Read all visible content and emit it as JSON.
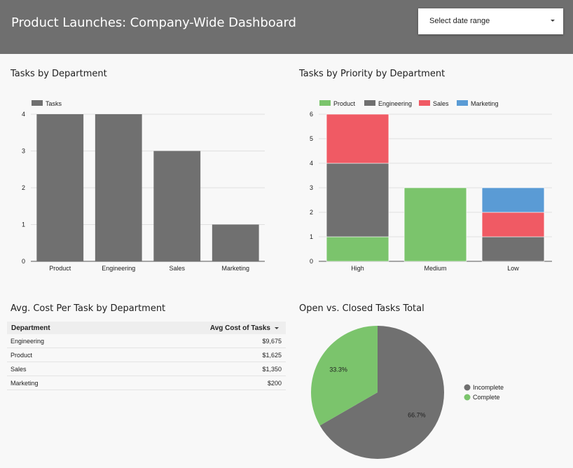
{
  "header": {
    "title": "Product Launches: Company-Wide Dashboard",
    "date_range_label": "Select date range"
  },
  "colors": {
    "header_bg": "#6f6f6f",
    "gray": "#707070",
    "green": "#7bc46c",
    "red": "#f05a64",
    "blue": "#5a9bd5"
  },
  "panels": {
    "tasks_by_department": "Tasks by Department",
    "tasks_by_priority": "Tasks by Priority by Department",
    "avg_cost": "Avg. Cost Per Task by Department",
    "open_closed": "Open vs. Closed Tasks Total"
  },
  "chart_data": [
    {
      "type": "bar",
      "title": "Tasks by Department",
      "categories": [
        "Product",
        "Engineering",
        "Sales",
        "Marketing"
      ],
      "series": [
        {
          "name": "Tasks",
          "values": [
            4,
            4,
            3,
            1
          ],
          "color": "#707070"
        }
      ],
      "ylim": [
        0,
        4
      ],
      "yticks": [
        "0",
        "1",
        "2",
        "3",
        "4"
      ],
      "legend": "top-left",
      "grid": true
    },
    {
      "type": "bar",
      "stacked": true,
      "title": "Tasks by Priority by Department",
      "categories": [
        "High",
        "Medium",
        "Low"
      ],
      "series": [
        {
          "name": "Product",
          "values": [
            1,
            3,
            0
          ],
          "color": "#7bc46c"
        },
        {
          "name": "Engineering",
          "values": [
            3,
            0,
            1
          ],
          "color": "#707070"
        },
        {
          "name": "Sales",
          "values": [
            2,
            0,
            1
          ],
          "color": "#f05a64"
        },
        {
          "name": "Marketing",
          "values": [
            0,
            0,
            1
          ],
          "color": "#5a9bd5"
        }
      ],
      "ylim": [
        0,
        6
      ],
      "yticks": [
        "0",
        "1",
        "2",
        "3",
        "4",
        "5",
        "6"
      ],
      "legend": "top-left",
      "grid": true
    },
    {
      "type": "table",
      "title": "Avg. Cost Per Task by Department",
      "columns": [
        "Department",
        "Avg Cost of Tasks"
      ],
      "rows": [
        [
          "Engineering",
          "$9,675"
        ],
        [
          "Product",
          "$1,625"
        ],
        [
          "Sales",
          "$1,350"
        ],
        [
          "Marketing",
          "$200"
        ]
      ]
    },
    {
      "type": "pie",
      "title": "Open vs. Closed Tasks Total",
      "slices": [
        {
          "name": "Incomplete",
          "value": 66.7,
          "label": "66.7%",
          "color": "#707070"
        },
        {
          "name": "Complete",
          "value": 33.3,
          "label": "33.3%",
          "color": "#7bc46c"
        }
      ],
      "legend": "right"
    }
  ]
}
